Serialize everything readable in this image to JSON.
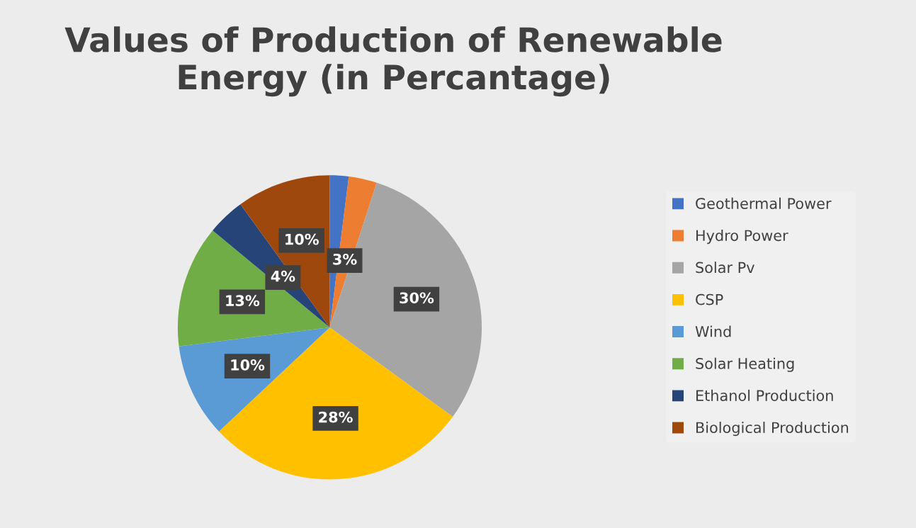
{
  "chart_data": {
    "type": "pie",
    "title": "Values of Production of Renewable Energy (in Percantage)",
    "categories": [
      "Geothermal Power",
      "Hydro Power",
      "Solar Pv",
      "CSP",
      "Wind",
      "Solar Heating",
      "Ethanol Production",
      "Biological Production"
    ],
    "values": [
      2,
      3,
      30,
      28,
      10,
      13,
      4,
      10
    ],
    "colors": [
      "#4472c4",
      "#ed7d31",
      "#a5a5a5",
      "#ffc000",
      "#5b9bd5",
      "#70ad47",
      "#264478",
      "#9e480e"
    ],
    "value_labels": [
      null,
      "3%",
      "30%",
      "28%",
      "10%",
      "13%",
      "4%",
      "10%"
    ],
    "legend": "right"
  }
}
